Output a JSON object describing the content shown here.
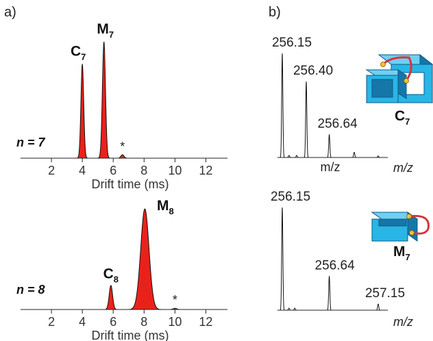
{
  "panel_a_label": "a)",
  "panel_b_label": "b)",
  "colors": {
    "peak_fill": "#e8221b",
    "axis": "#222222",
    "cube": "#29b5e6",
    "cube_dark": "#1576a8",
    "linker": "#d8343a",
    "joint": "#f2c230"
  },
  "chart_data": [
    {
      "type": "area",
      "panel": "a-top",
      "annotation": "n = 7",
      "xlabel": "Drift time (ms)",
      "ylabel": "",
      "xlim": [
        0,
        13.4
      ],
      "xticks": [
        2,
        4,
        6,
        8,
        10,
        12
      ],
      "x_tick_labels": [
        "2",
        "4",
        "6",
        "8",
        "10",
        "12"
      ],
      "peaks": [
        {
          "label": "C",
          "sub": "7",
          "x": 4.0,
          "height": 0.81,
          "width": 0.09
        },
        {
          "label": "M",
          "sub": "7",
          "x": 5.4,
          "height": 1.0,
          "width": 0.1
        },
        {
          "label": "*",
          "sub": "",
          "x": 6.6,
          "height": 0.03,
          "width": 0.1
        }
      ]
    },
    {
      "type": "area",
      "panel": "a-bottom",
      "annotation": "n = 8",
      "xlabel": "Drift time (ms)",
      "ylabel": "",
      "xlim": [
        0,
        13.4
      ],
      "xticks": [
        2,
        4,
        6,
        8,
        10,
        12
      ],
      "x_tick_labels": [
        "2",
        "4",
        "6",
        "8",
        "10",
        "12"
      ],
      "peaks": [
        {
          "label": "C",
          "sub": "8",
          "x": 5.85,
          "height": 0.24,
          "width": 0.11
        },
        {
          "label": "M",
          "sub": "8",
          "x": 8.05,
          "height": 1.0,
          "width": 0.27
        },
        {
          "label": "*",
          "sub": "",
          "x": 10.0,
          "height": 0.012,
          "width": 0.12
        }
      ]
    },
    {
      "type": "line",
      "panel": "b-top",
      "annotation": "C",
      "annotation_sub": "7",
      "xlabel": "m/z",
      "xlabel_extra": "m/z",
      "peaks": [
        {
          "mz": 256.15,
          "label": "256.15",
          "height": 1.0
        },
        {
          "mz": 256.4,
          "label": "256.40",
          "height": 0.73
        },
        {
          "mz": 256.64,
          "label": "256.64",
          "height": 0.22
        }
      ],
      "minor_peaks": [
        {
          "mz": 256.22,
          "height": 0.02
        },
        {
          "mz": 256.3,
          "height": 0.02
        },
        {
          "mz": 256.9,
          "height": 0.05
        },
        {
          "mz": 257.15,
          "height": 0.015
        }
      ],
      "xlim": [
        256.1,
        257.25
      ]
    },
    {
      "type": "line",
      "panel": "b-bottom",
      "annotation": "M",
      "annotation_sub": "7",
      "xlabel": "m/z",
      "peaks": [
        {
          "mz": 256.15,
          "label": "256.15",
          "height": 1.0
        },
        {
          "mz": 256.64,
          "label": "256.64",
          "height": 0.33
        },
        {
          "mz": 257.15,
          "label": "257.15",
          "height": 0.06
        }
      ],
      "minor_peaks": [
        {
          "mz": 256.22,
          "height": 0.02
        },
        {
          "mz": 256.28,
          "height": 0.02
        }
      ],
      "xlim": [
        256.1,
        257.25
      ]
    }
  ]
}
